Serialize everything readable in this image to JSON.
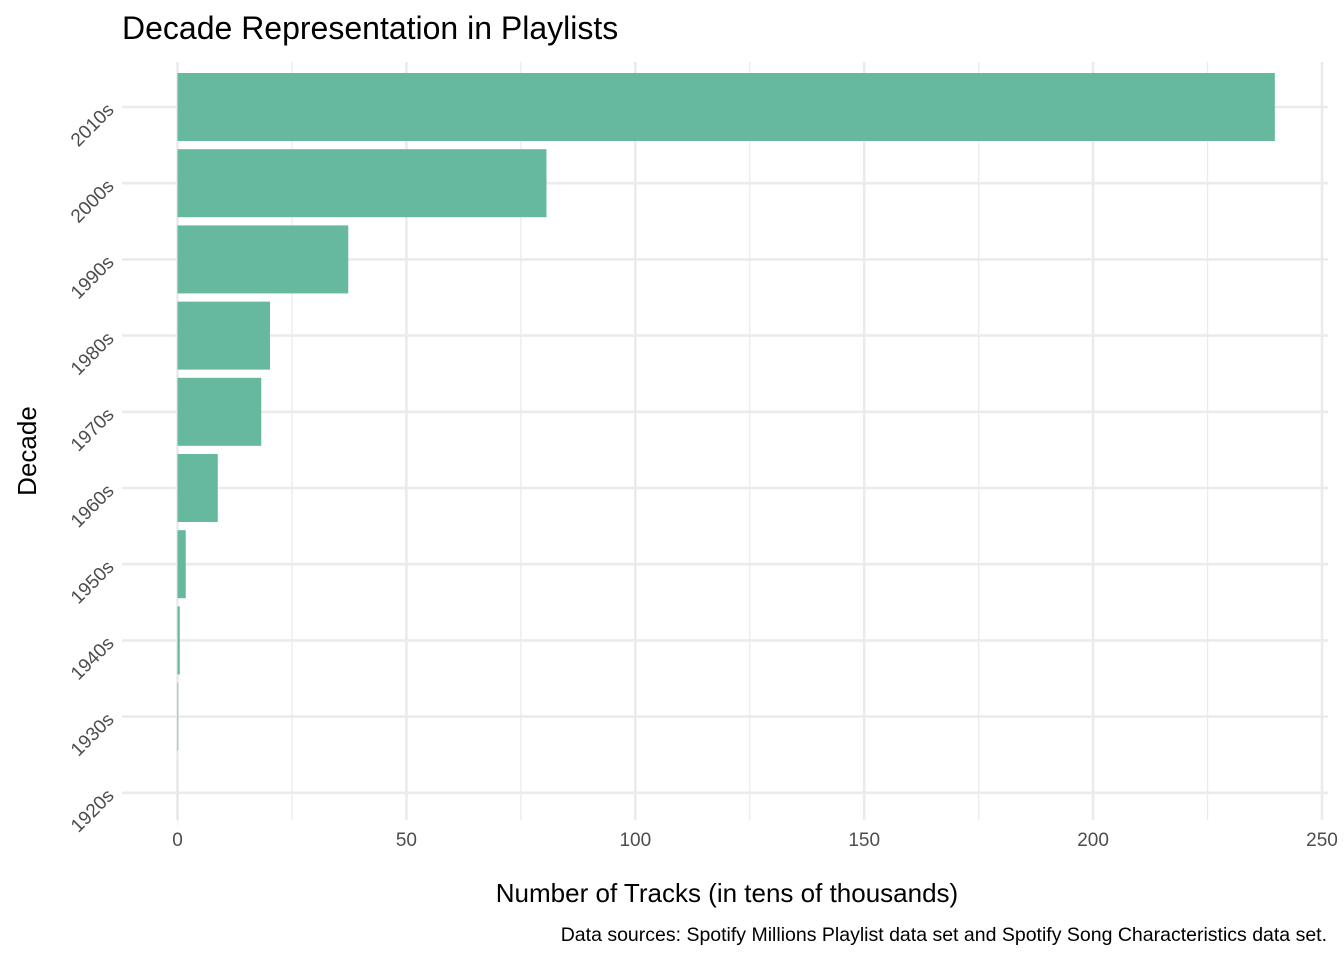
{
  "chart_data": {
    "type": "bar",
    "orientation": "horizontal",
    "title": "Decade Representation in Playlists",
    "xlabel": "Number of Tracks (in tens of thousands)",
    "ylabel": "Decade",
    "caption": "Data sources: Spotify Millions Playlist data set and Spotify Song Characteristics data set.",
    "categories": [
      "1920s",
      "1930s",
      "1940s",
      "1950s",
      "1960s",
      "1970s",
      "1980s",
      "1990s",
      "2000s",
      "2010s"
    ],
    "values": [
      0.02,
      0.15,
      0.5,
      1.8,
      8.8,
      18.3,
      20.2,
      37.3,
      80.6,
      239.7
    ],
    "xlim": [
      0,
      250
    ],
    "xticks": [
      0,
      50,
      100,
      150,
      200,
      250
    ],
    "xtick_labels": [
      "0",
      "50",
      "100",
      "150",
      "200",
      "250"
    ],
    "grid": true,
    "legend": "none",
    "colors": {
      "bar": "#66b99e",
      "grid": "#ebebeb",
      "tick_text": "#4d4d4d",
      "background": "#ffffff"
    }
  }
}
